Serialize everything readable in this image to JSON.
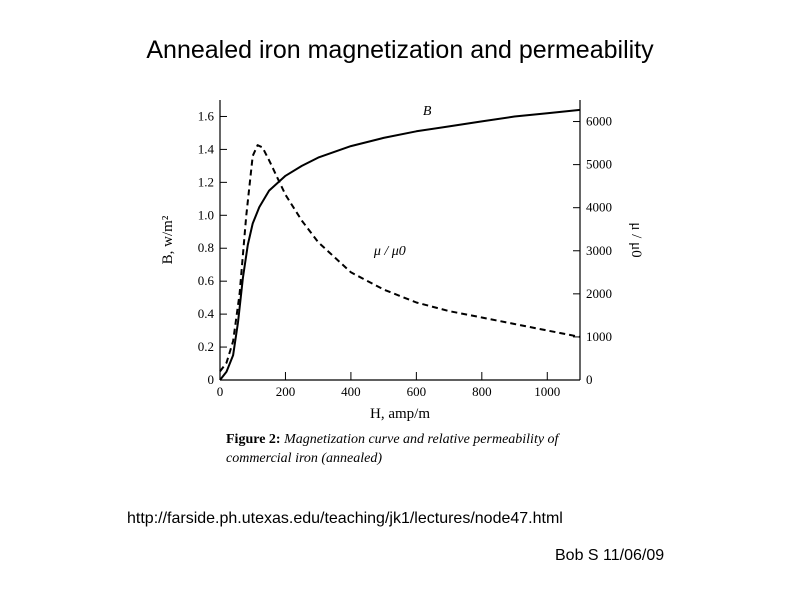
{
  "slide": {
    "title": "Annealed iron magnetization and permeability",
    "url": "http://farside.ph.utexas.edu/teaching/jk1/lectures/node47.html",
    "author": "Bob S 11/06/09"
  },
  "figure": {
    "label": "Figure 2:",
    "caption_line1": "Magnetization curve and relative permeability of",
    "caption_line2": "commercial iron (annealed)"
  },
  "chart_data": {
    "type": "line",
    "xlabel": "H, amp/m",
    "ylabel_left": "B, w/m²",
    "ylabel_right": "μ / μ0",
    "xlim": [
      0,
      1100
    ],
    "ylim_left": [
      0,
      1.7
    ],
    "ylim_right": [
      0,
      6500
    ],
    "x_ticks": [
      0,
      200,
      400,
      600,
      800,
      1000
    ],
    "y_left_ticks": [
      0,
      0.2,
      0.4,
      0.6,
      0.8,
      1.0,
      1.2,
      1.4,
      1.6
    ],
    "y_right_ticks": [
      0,
      1000,
      2000,
      3000,
      4000,
      5000,
      6000
    ],
    "grid": false,
    "series": [
      {
        "name": "B",
        "axis": "left",
        "style": "solid",
        "x": [
          0,
          20,
          40,
          55,
          70,
          85,
          100,
          120,
          150,
          200,
          250,
          300,
          400,
          500,
          600,
          700,
          800,
          900,
          1000,
          1100
        ],
        "y": [
          0.0,
          0.05,
          0.15,
          0.35,
          0.62,
          0.82,
          0.95,
          1.05,
          1.15,
          1.24,
          1.3,
          1.35,
          1.42,
          1.47,
          1.51,
          1.54,
          1.57,
          1.6,
          1.62,
          1.64
        ]
      },
      {
        "name": "μ / μ0",
        "axis": "right",
        "style": "dashed",
        "x": [
          0,
          20,
          40,
          60,
          80,
          100,
          115,
          130,
          150,
          200,
          250,
          300,
          400,
          500,
          600,
          700,
          800,
          900,
          1000,
          1100
        ],
        "y": [
          200,
          400,
          900,
          2000,
          3800,
          5200,
          5450,
          5400,
          5100,
          4300,
          3700,
          3200,
          2500,
          2100,
          1800,
          1600,
          1450,
          1300,
          1150,
          1000
        ]
      }
    ],
    "annotations": [
      {
        "text": "B",
        "x": 620,
        "y": 1.61,
        "axis": "left"
      },
      {
        "text": "μ / μ0",
        "x": 470,
        "y": 2900,
        "axis": "right"
      }
    ]
  }
}
